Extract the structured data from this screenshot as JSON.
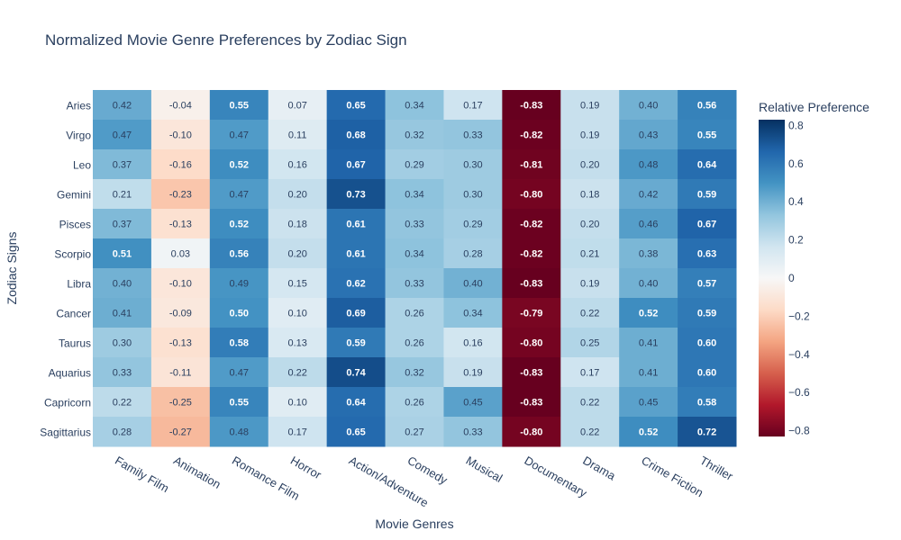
{
  "chart_data": {
    "type": "heatmap",
    "title": "Normalized Movie Genre Preferences by Zodiac Sign",
    "xlabel": "Movie Genres",
    "ylabel": "Zodiac Signs",
    "x_categories": [
      "Family Film",
      "Animation",
      "Romance Film",
      "Horror",
      "Action/Adventure",
      "Comedy",
      "Musical",
      "Documentary",
      "Drama",
      "Crime Fiction",
      "Thriller"
    ],
    "y_categories": [
      "Aries",
      "Virgo",
      "Leo",
      "Gemini",
      "Pisces",
      "Scorpio",
      "Libra",
      "Cancer",
      "Taurus",
      "Aquarius",
      "Capricorn",
      "Sagittarius"
    ],
    "values": [
      [
        0.42,
        -0.04,
        0.55,
        0.07,
        0.65,
        0.34,
        0.17,
        -0.83,
        0.19,
        0.4,
        0.56
      ],
      [
        0.47,
        -0.1,
        0.47,
        0.11,
        0.68,
        0.32,
        0.33,
        -0.82,
        0.19,
        0.43,
        0.55
      ],
      [
        0.37,
        -0.16,
        0.52,
        0.16,
        0.67,
        0.29,
        0.3,
        -0.81,
        0.2,
        0.48,
        0.64
      ],
      [
        0.21,
        -0.23,
        0.47,
        0.2,
        0.73,
        0.34,
        0.3,
        -0.8,
        0.18,
        0.42,
        0.59
      ],
      [
        0.37,
        -0.13,
        0.52,
        0.18,
        0.61,
        0.33,
        0.29,
        -0.82,
        0.2,
        0.46,
        0.67
      ],
      [
        0.51,
        0.03,
        0.56,
        0.2,
        0.61,
        0.34,
        0.28,
        -0.82,
        0.21,
        0.38,
        0.63
      ],
      [
        0.4,
        -0.1,
        0.49,
        0.15,
        0.62,
        0.33,
        0.4,
        -0.83,
        0.19,
        0.4,
        0.57
      ],
      [
        0.41,
        -0.09,
        0.5,
        0.1,
        0.69,
        0.26,
        0.34,
        -0.79,
        0.22,
        0.52,
        0.59
      ],
      [
        0.3,
        -0.13,
        0.58,
        0.13,
        0.59,
        0.26,
        0.16,
        -0.8,
        0.25,
        0.41,
        0.6
      ],
      [
        0.33,
        -0.11,
        0.47,
        0.22,
        0.74,
        0.32,
        0.19,
        -0.83,
        0.17,
        0.41,
        0.6
      ],
      [
        0.22,
        -0.25,
        0.55,
        0.1,
        0.64,
        0.26,
        0.45,
        -0.83,
        0.22,
        0.45,
        0.58
      ],
      [
        0.28,
        -0.27,
        0.48,
        0.17,
        0.65,
        0.27,
        0.33,
        -0.8,
        0.22,
        0.52,
        0.72
      ]
    ],
    "colorbar": {
      "title": "Relative Preference",
      "range": [
        -0.83,
        0.83
      ],
      "tick_values": [
        0.8,
        0.6,
        0.4,
        0.2,
        0,
        -0.2,
        -0.4,
        -0.6,
        -0.8
      ],
      "tick_labels": [
        "0.8",
        "0.6",
        "0.4",
        "0.2",
        "0",
        "−0.2",
        "−0.4",
        "−0.6",
        "−0.8"
      ]
    },
    "colorscale": "RdBu",
    "colorscale_stops": [
      "#67001f",
      "#b2182b",
      "#d6604d",
      "#f4a582",
      "#fddbc7",
      "#f7f7f7",
      "#d1e5f0",
      "#92c5de",
      "#4393c3",
      "#2166ac",
      "#053061"
    ],
    "grid": false,
    "legend": "right"
  }
}
